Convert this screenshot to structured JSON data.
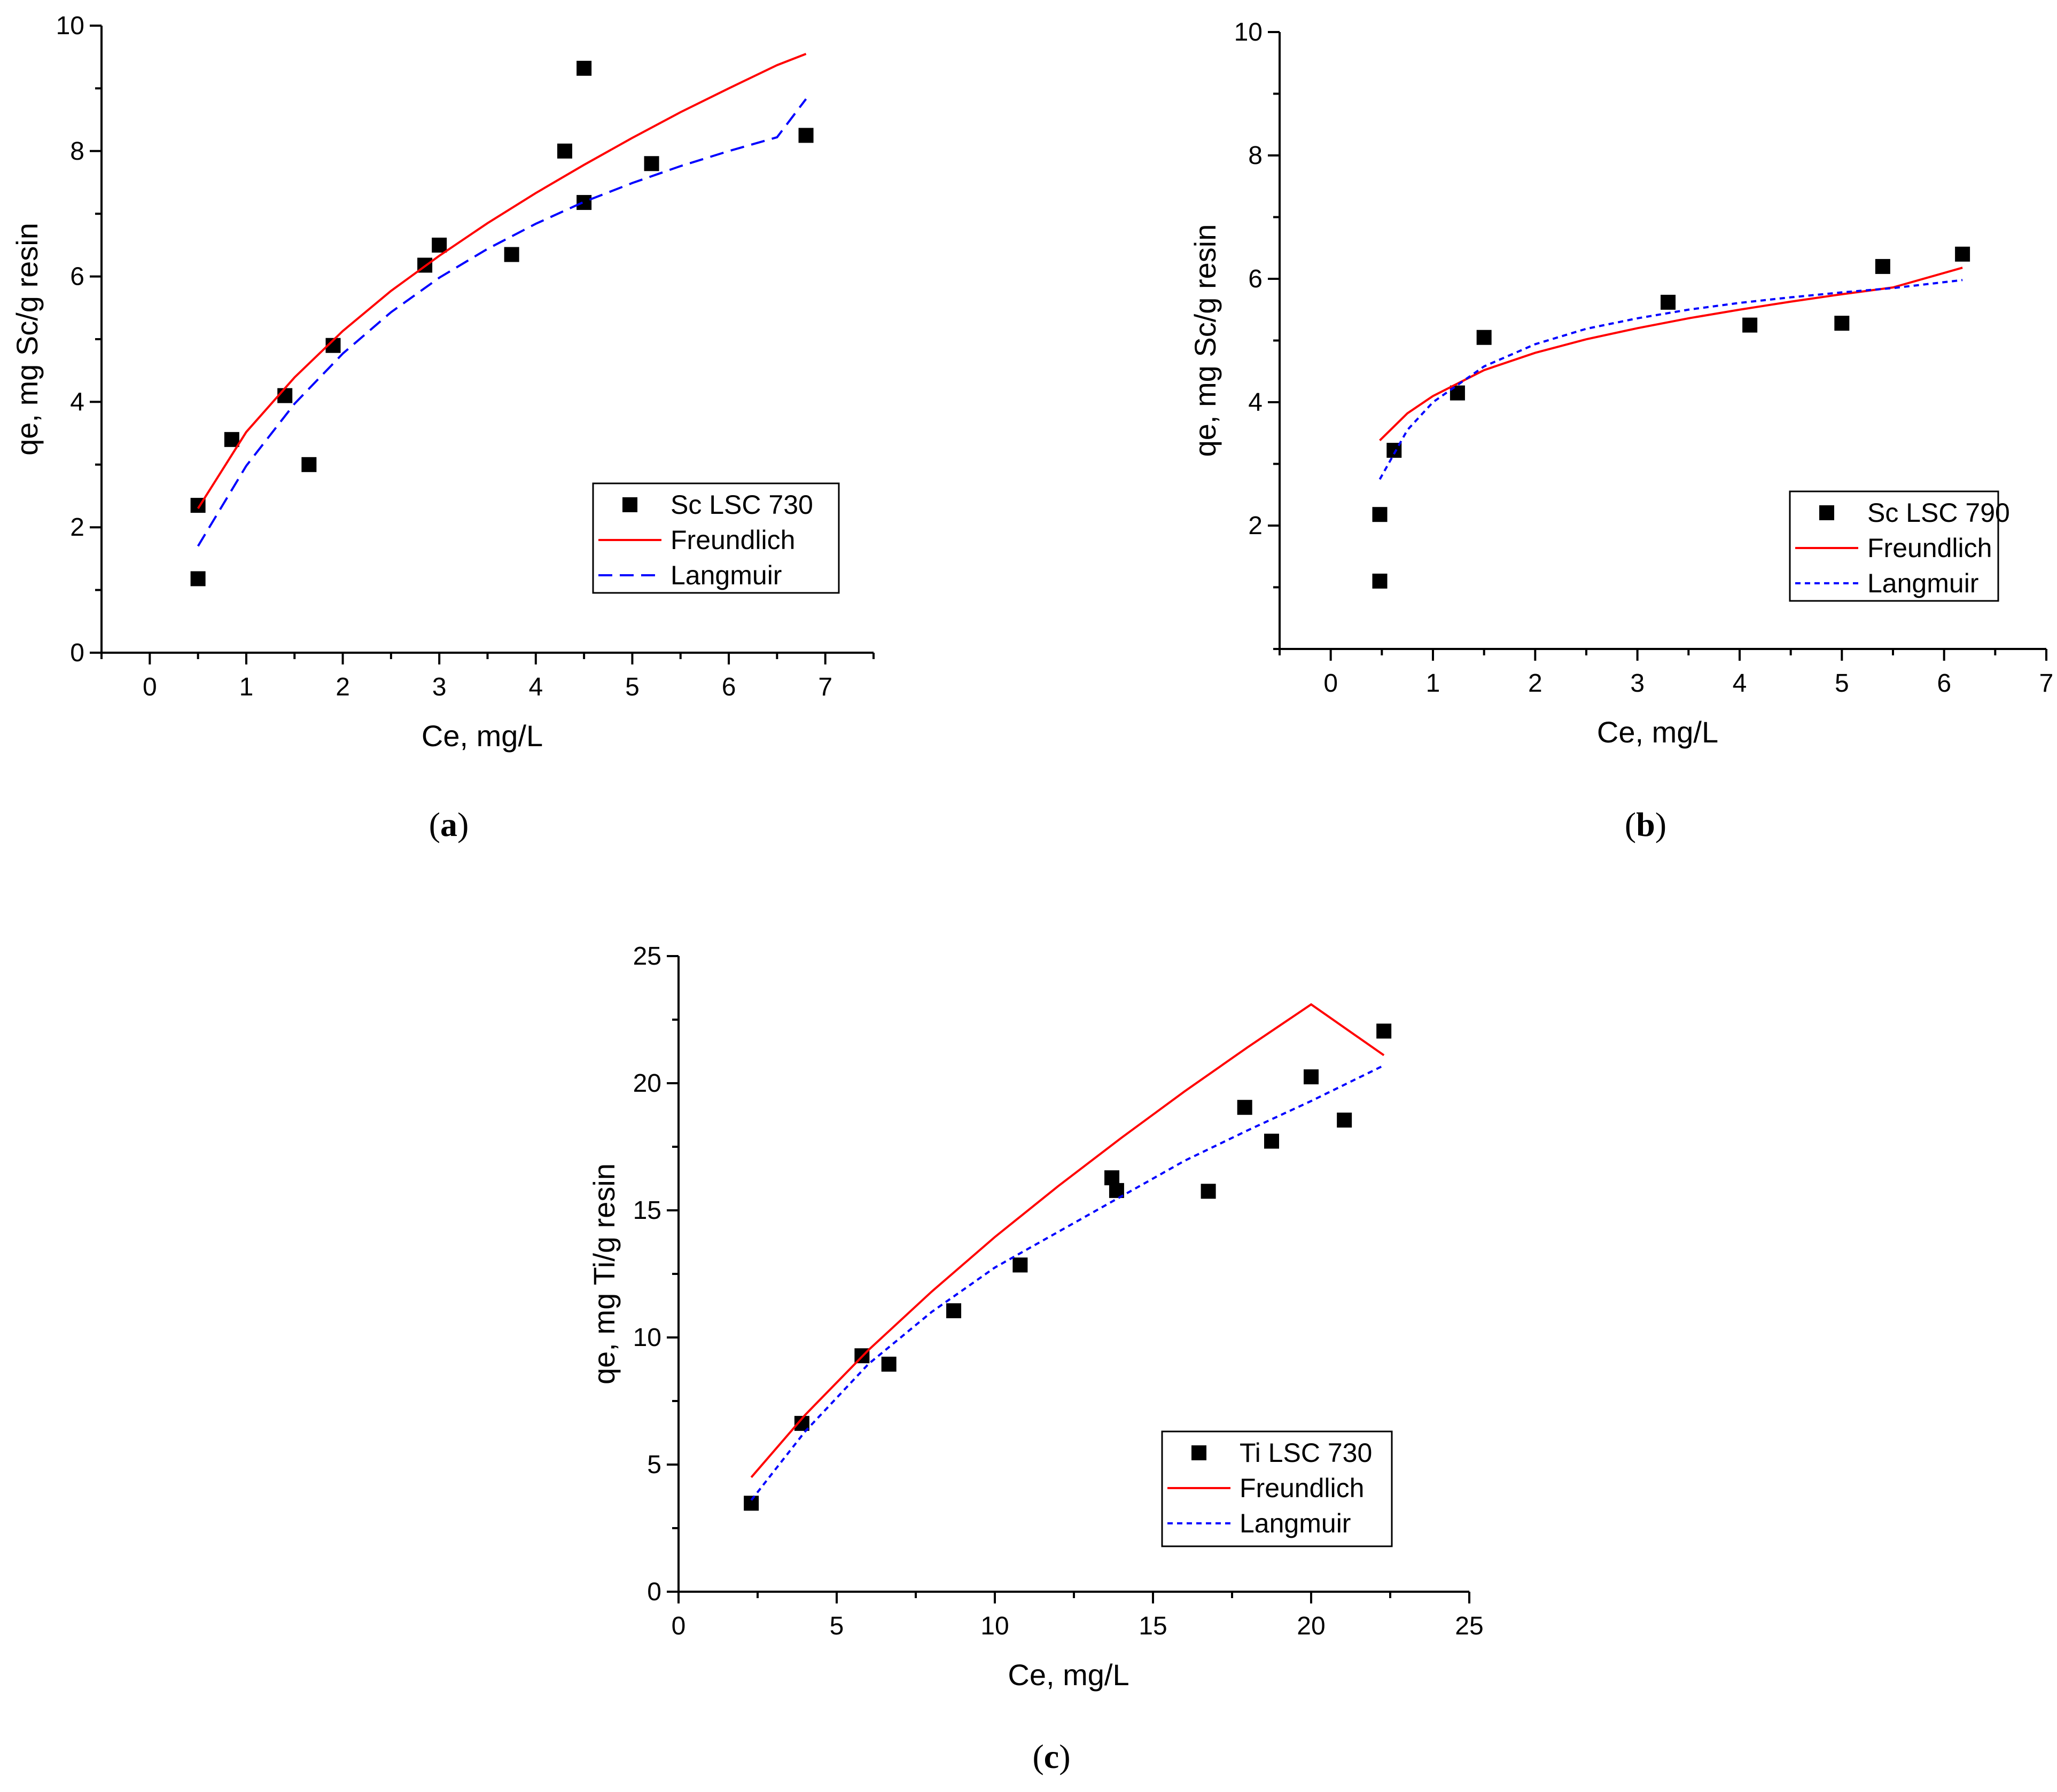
{
  "chart_data": [
    {
      "type": "scatter",
      "panel": "(a)",
      "panel_letter": "a",
      "xlabel": "Ce, mg/L",
      "ylabel": "qe, mg Sc/g resin",
      "xlim": [
        -0.5,
        7.5
      ],
      "ylim": [
        0,
        10
      ],
      "xticks": [
        0,
        1,
        2,
        3,
        4,
        5,
        6,
        7
      ],
      "yticks": [
        0,
        2,
        4,
        6,
        8,
        10
      ],
      "legend_position": "bottom-right",
      "series": [
        {
          "name": "Sc  LSC 730",
          "kind": "points",
          "color": "#000000",
          "x": [
            0.5,
            0.5,
            0.85,
            1.4,
            1.65,
            1.9,
            2.85,
            3.0,
            3.75,
            4.3,
            4.5,
            4.5,
            5.2,
            6.8
          ],
          "y": [
            2.35,
            1.18,
            3.4,
            4.1,
            3.0,
            4.9,
            6.18,
            6.5,
            6.35,
            8.0,
            9.32,
            7.18,
            7.8,
            8.25
          ]
        },
        {
          "name": "Freundlich",
          "kind": "line",
          "style": "solid",
          "color": "#ff0000",
          "x": [
            0.5,
            1.0,
            1.5,
            2.0,
            2.5,
            3.0,
            3.5,
            4.0,
            4.5,
            5.0,
            5.5,
            6.0,
            6.5,
            6.8
          ],
          "y": [
            2.3,
            3.52,
            4.39,
            5.13,
            5.77,
            6.33,
            6.85,
            7.33,
            7.78,
            8.21,
            8.62,
            9.0,
            9.37,
            9.55
          ]
        },
        {
          "name": "Langmuir",
          "kind": "line",
          "style": "dashed",
          "color": "#0000ff",
          "x": [
            0.5,
            1.0,
            1.5,
            2.0,
            2.5,
            3.0,
            3.5,
            4.0,
            4.5,
            5.0,
            5.5,
            6.0,
            6.5,
            6.8
          ],
          "y": [
            1.7,
            2.98,
            3.97,
            4.77,
            5.43,
            5.98,
            6.44,
            6.84,
            7.19,
            7.49,
            7.76,
            8.0,
            8.22,
            8.83
          ]
        }
      ]
    },
    {
      "type": "scatter",
      "panel": "(b)",
      "panel_letter": "b",
      "xlabel": "Ce, mg/L",
      "ylabel": "qe, mg Sc/g resin",
      "xlim": [
        -0.5,
        7.0
      ],
      "ylim": [
        0,
        10
      ],
      "xticks": [
        0,
        1,
        2,
        3,
        4,
        5,
        6,
        7
      ],
      "yticks": [
        2,
        4,
        6,
        8,
        10
      ],
      "legend_position": "right",
      "series": [
        {
          "name": "Sc  LSC 790",
          "kind": "points",
          "color": "#000000",
          "x": [
            0.48,
            0.48,
            0.62,
            1.24,
            1.5,
            3.3,
            4.1,
            5.0,
            5.4,
            6.18
          ],
          "y": [
            2.18,
            1.1,
            3.22,
            4.15,
            5.05,
            5.62,
            5.25,
            5.28,
            6.2,
            6.4
          ]
        },
        {
          "name": "Freundlich",
          "kind": "line",
          "style": "solid",
          "color": "#ff0000",
          "x": [
            0.48,
            0.75,
            1.0,
            1.5,
            2.0,
            2.5,
            3.0,
            3.5,
            4.0,
            4.5,
            5.0,
            5.5,
            6.18
          ],
          "y": [
            3.38,
            3.82,
            4.1,
            4.52,
            4.8,
            5.02,
            5.2,
            5.36,
            5.5,
            5.63,
            5.75,
            5.86,
            6.18
          ]
        },
        {
          "name": "Langmuir",
          "kind": "line",
          "style": "dotted",
          "color": "#0000ff",
          "x": [
            0.48,
            0.75,
            1.0,
            1.5,
            2.0,
            2.5,
            3.0,
            3.5,
            4.0,
            4.5,
            5.0,
            5.5,
            6.18
          ],
          "y": [
            2.75,
            3.55,
            4.0,
            4.58,
            4.94,
            5.19,
            5.36,
            5.5,
            5.61,
            5.7,
            5.78,
            5.85,
            5.98
          ]
        }
      ]
    },
    {
      "type": "scatter",
      "panel": "(c)",
      "panel_letter": "c",
      "xlabel": "Ce, mg/L",
      "ylabel": "qe, mg Ti/g resin",
      "xlim": [
        0,
        25
      ],
      "ylim": [
        0,
        25
      ],
      "xticks": [
        0,
        5,
        10,
        15,
        20,
        25
      ],
      "yticks": [
        0,
        5,
        10,
        15,
        20,
        25
      ],
      "legend_position": "bottom-right",
      "series": [
        {
          "name": "Ti LSC 730",
          "kind": "points",
          "color": "#000000",
          "x": [
            2.3,
            3.9,
            5.8,
            6.65,
            8.7,
            10.8,
            13.7,
            13.85,
            16.75,
            17.9,
            18.75,
            20.0,
            21.05,
            22.3
          ],
          "y": [
            3.48,
            6.62,
            9.28,
            8.95,
            11.05,
            12.85,
            16.28,
            15.78,
            15.75,
            19.05,
            17.72,
            20.25,
            18.55,
            22.05
          ]
        },
        {
          "name": "Freundlich",
          "kind": "line",
          "style": "solid",
          "color": "#ff0000",
          "x": [
            2.3,
            4.0,
            6.0,
            8.0,
            10.0,
            12.0,
            14.0,
            16.0,
            18.0,
            20.0,
            22.3
          ],
          "y": [
            4.5,
            6.95,
            9.5,
            11.8,
            13.95,
            15.95,
            17.85,
            19.68,
            21.42,
            23.1,
            21.1
          ]
        },
        {
          "name": "Langmuir",
          "kind": "line",
          "style": "dotted",
          "color": "#0000ff",
          "x": [
            2.3,
            4.0,
            6.0,
            8.0,
            10.0,
            12.0,
            14.0,
            16.0,
            18.0,
            20.0,
            22.3
          ],
          "y": [
            3.6,
            6.3,
            8.95,
            11.0,
            12.75,
            14.15,
            15.55,
            16.95,
            18.15,
            19.3,
            20.7
          ]
        }
      ]
    }
  ]
}
